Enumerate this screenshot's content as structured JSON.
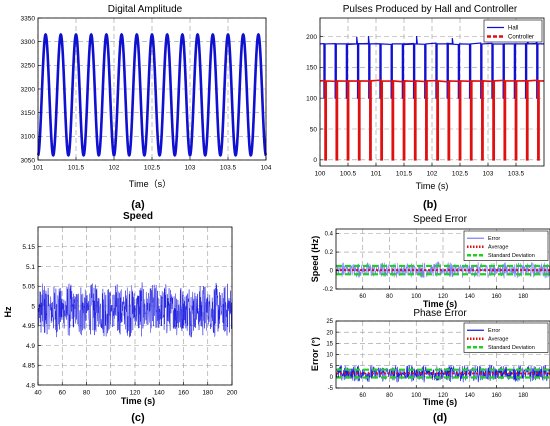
{
  "chart_data": [
    {
      "id": "a",
      "type": "line",
      "title": "Digital Amplitude",
      "panel_label": "(a)",
      "xlabel": "Time（s）",
      "ylabel": "",
      "xlim": [
        101,
        104
      ],
      "ylim": [
        3050,
        3350
      ],
      "xticks": [
        101,
        101.5,
        102,
        102.5,
        103,
        103.5,
        104
      ],
      "xtick_labels": [
        "101",
        "101.5",
        "102",
        "102.5",
        "103",
        "103.5",
        "104"
      ],
      "yticks": [
        3050,
        3100,
        3150,
        3200,
        3250,
        3300,
        3350
      ],
      "ytick_labels": [
        "3050",
        "3100",
        "3150",
        "3200",
        "3250",
        "3300",
        "3350"
      ],
      "grid": true,
      "series": [
        {
          "color": "#1010d0",
          "waveform": "sine",
          "frequency_hz": 5,
          "min": 3060,
          "max": 3315
        }
      ]
    },
    {
      "id": "b",
      "type": "line",
      "title": "Pulses Produced by Hall and  Controller",
      "panel_label": "(b)",
      "xlabel": "Time (s)",
      "ylabel": "",
      "xlim": [
        100,
        104
      ],
      "ylim": [
        -10,
        230
      ],
      "xticks": [
        100,
        100.5,
        101,
        101.5,
        102,
        102.5,
        103,
        103.5
      ],
      "xtick_labels": [
        "100",
        "100.5",
        "101",
        "101.5",
        "102",
        "102.5",
        "103",
        "103.5"
      ],
      "yticks": [
        0,
        50,
        100,
        150,
        200
      ],
      "ytick_labels": [
        "0",
        "50",
        "100",
        "150",
        "200"
      ],
      "grid": true,
      "legend": {
        "position": "top-right"
      },
      "series": [
        {
          "name": "Hall",
          "color": "#1010d0",
          "dash": "solid",
          "baseline": 188,
          "low": 100,
          "pulses_per_s": 5
        },
        {
          "name": "Controller",
          "color": "#e01010",
          "dash": "dashed",
          "baseline": 128,
          "low": 0,
          "pulses_per_s": 5
        }
      ]
    },
    {
      "id": "c",
      "type": "line",
      "title": "Speed",
      "panel_label": "(c)",
      "xlabel": "Time (s)",
      "ylabel": "Hz",
      "xlim": [
        40,
        200
      ],
      "ylim": [
        4.8,
        5.2
      ],
      "xticks": [
        40,
        60,
        80,
        100,
        120,
        140,
        160,
        180,
        200
      ],
      "xtick_labels": [
        "40",
        "60",
        "80",
        "100",
        "120",
        "140",
        "160",
        "180",
        "200"
      ],
      "yticks": [
        4.8,
        4.85,
        4.9,
        4.95,
        5,
        5.05,
        5.1,
        5.15
      ],
      "ytick_labels": [
        "4.8",
        "4.85",
        "4.9",
        "4.95",
        "5",
        "5.05",
        "5.1",
        "5.15"
      ],
      "grid": true,
      "series": [
        {
          "color": "#1a1ae0",
          "mean": 4.99,
          "amplitude": 0.07
        }
      ]
    },
    {
      "id": "d1",
      "type": "line",
      "title": "Speed Error",
      "panel_label": "",
      "xlabel": "Time (s)",
      "ylabel": "Speed (Hz)",
      "xlim": [
        40,
        200
      ],
      "ylim": [
        -0.2,
        0.45
      ],
      "xticks": [
        60,
        80,
        100,
        120,
        140,
        160,
        180
      ],
      "xtick_labels": [
        "60",
        "80",
        "100",
        "120",
        "140",
        "160",
        "180"
      ],
      "yticks": [
        -0.2,
        0,
        0.2,
        0.4
      ],
      "ytick_labels": [
        "-0.2",
        "0",
        "0.2",
        "0.4"
      ],
      "grid": true,
      "legend": {
        "position": "top-right"
      },
      "series": [
        {
          "name": "Error",
          "color": "#8080ff",
          "dash": "solid",
          "mean": 0.005,
          "amplitude": 0.09
        },
        {
          "name": "Average",
          "color": "#e01010",
          "dash": "dotted",
          "value": 0.005
        },
        {
          "name": "Standard Deviation",
          "color": "#20d020",
          "dash": "dashed",
          "values": [
            0.05,
            -0.04
          ]
        }
      ]
    },
    {
      "id": "d2",
      "type": "line",
      "title": "Phase Error",
      "panel_label": "(d)",
      "xlabel": "Time (s)",
      "ylabel": "Error (°)",
      "xlim": [
        40,
        200
      ],
      "ylim": [
        -5,
        25
      ],
      "xticks": [
        60,
        80,
        100,
        120,
        140,
        160,
        180
      ],
      "xtick_labels": [
        "60",
        "80",
        "100",
        "120",
        "140",
        "160",
        "180"
      ],
      "yticks": [
        -5,
        0,
        5,
        10,
        15,
        20,
        25
      ],
      "ytick_labels": [
        "-5",
        "0",
        "5",
        "10",
        "15",
        "20",
        "25"
      ],
      "grid": true,
      "legend": {
        "position": "top-right"
      },
      "series": [
        {
          "name": "Error",
          "color": "#1a1ae0",
          "dash": "solid",
          "mean": 1.5,
          "amplitude": 4
        },
        {
          "name": "Average",
          "color": "#e01010",
          "dash": "dotted",
          "value": 1.5
        },
        {
          "name": "Standard Deviation",
          "color": "#20d020",
          "dash": "dashed",
          "values": [
            3.2,
            -0.3
          ]
        }
      ]
    }
  ]
}
